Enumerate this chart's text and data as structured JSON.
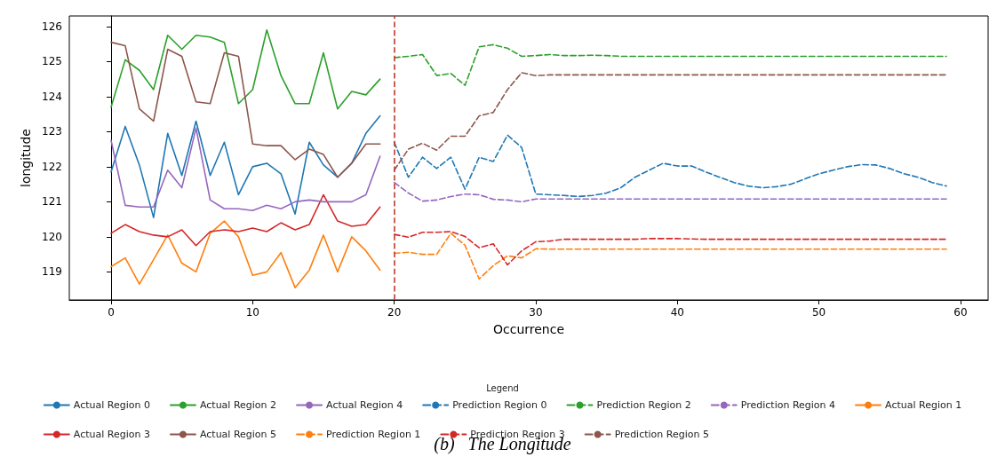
{
  "chart_data": {
    "type": "line",
    "title": "(b)   The Longitude",
    "xlabel": "Occurrence",
    "ylabel": "longitude",
    "legend_title": "Legend",
    "legend": "bottom",
    "grid": false,
    "marker": "none",
    "xlim": [
      -2.95,
      61.95
    ],
    "xticks": [
      0,
      10,
      20,
      30,
      40,
      50,
      60
    ],
    "ylim": [
      118.2,
      126.3
    ],
    "yticks": [
      119,
      120,
      121,
      122,
      123,
      124,
      125,
      126
    ],
    "ref_lines": [
      {
        "axis": "x",
        "value": 20,
        "color": "#c0392b",
        "line_style": "dashed"
      }
    ],
    "series": [
      {
        "name": "Actual Region 0",
        "color": "#1f77b4",
        "line_style": "solid",
        "x": [
          0,
          1,
          2,
          3,
          4,
          5,
          6,
          7,
          8,
          9,
          10,
          11,
          12,
          13,
          14,
          15,
          16,
          17,
          18,
          19
        ],
        "values": [
          121.85,
          123.15,
          122.05,
          120.55,
          122.95,
          121.75,
          123.3,
          121.75,
          122.7,
          121.2,
          122.0,
          122.1,
          121.8,
          120.65,
          122.7,
          122.05,
          121.7,
          122.1,
          122.95,
          123.45
        ]
      },
      {
        "name": "Actual Region 1",
        "color": "#ff7f0e",
        "line_style": "solid",
        "x": [
          0,
          1,
          2,
          3,
          4,
          5,
          6,
          7,
          8,
          9,
          10,
          11,
          12,
          13,
          14,
          15,
          16,
          17,
          18,
          19
        ],
        "values": [
          119.15,
          119.4,
          118.65,
          119.35,
          120.05,
          119.25,
          119.0,
          120.1,
          120.45,
          120.0,
          118.9,
          119.0,
          119.55,
          118.55,
          119.05,
          120.05,
          119.0,
          120.0,
          119.6,
          119.05
        ]
      },
      {
        "name": "Actual Region 2",
        "color": "#2ca02c",
        "line_style": "solid",
        "x": [
          0,
          1,
          2,
          3,
          4,
          5,
          6,
          7,
          8,
          9,
          10,
          11,
          12,
          13,
          14,
          15,
          16,
          17,
          18,
          19
        ],
        "values": [
          123.7,
          125.05,
          124.75,
          124.2,
          125.75,
          125.35,
          125.75,
          125.7,
          125.55,
          123.8,
          124.2,
          125.9,
          124.6,
          123.8,
          123.8,
          125.25,
          123.65,
          124.15,
          124.05,
          124.5
        ]
      },
      {
        "name": "Actual Region 3",
        "color": "#d62728",
        "line_style": "solid",
        "x": [
          0,
          1,
          2,
          3,
          4,
          5,
          6,
          7,
          8,
          9,
          10,
          11,
          12,
          13,
          14,
          15,
          16,
          17,
          18,
          19
        ],
        "values": [
          120.1,
          120.35,
          120.15,
          120.05,
          120.0,
          120.2,
          119.75,
          120.15,
          120.2,
          120.15,
          120.25,
          120.15,
          120.4,
          120.2,
          120.35,
          121.2,
          120.45,
          120.3,
          120.35,
          120.85
        ]
      },
      {
        "name": "Actual Region 4",
        "color": "#9467bd",
        "line_style": "solid",
        "x": [
          0,
          1,
          2,
          3,
          4,
          5,
          6,
          7,
          8,
          9,
          10,
          11,
          12,
          13,
          14,
          15,
          16,
          17,
          18,
          19
        ],
        "values": [
          122.75,
          120.9,
          120.85,
          120.85,
          121.9,
          121.4,
          123.1,
          121.05,
          120.8,
          120.8,
          120.75,
          120.9,
          120.8,
          121.0,
          121.05,
          121.0,
          121.0,
          121.0,
          121.2,
          122.3
        ]
      },
      {
        "name": "Actual Region 5",
        "color": "#8c564b",
        "line_style": "solid",
        "x": [
          0,
          1,
          2,
          3,
          4,
          5,
          6,
          7,
          8,
          9,
          10,
          11,
          12,
          13,
          14,
          15,
          16,
          17,
          18,
          19
        ],
        "values": [
          125.55,
          125.45,
          123.65,
          123.3,
          125.35,
          125.15,
          123.85,
          123.8,
          125.25,
          125.15,
          122.65,
          122.6,
          122.6,
          122.2,
          122.5,
          122.35,
          121.7,
          122.1,
          122.65,
          122.65
        ]
      },
      {
        "name": "Prediction Region 0",
        "color": "#1f77b4",
        "line_style": "dashed",
        "x": [
          20,
          21,
          22,
          23,
          24,
          25,
          26,
          27,
          28,
          29,
          30,
          31,
          32,
          33,
          34,
          35,
          36,
          37,
          38,
          39,
          40,
          41,
          42,
          43,
          44,
          45,
          46,
          47,
          48,
          49,
          50,
          51,
          52,
          53,
          54,
          55,
          56,
          57,
          58,
          59
        ],
        "values": [
          122.7,
          121.7,
          122.27,
          121.95,
          122.27,
          121.36,
          122.27,
          122.15,
          122.9,
          122.55,
          121.22,
          121.2,
          121.18,
          121.15,
          121.18,
          121.25,
          121.4,
          121.7,
          121.9,
          122.1,
          122.02,
          122.02,
          121.85,
          121.7,
          121.55,
          121.45,
          121.4,
          121.43,
          121.5,
          121.65,
          121.8,
          121.9,
          122.0,
          122.06,
          122.05,
          121.95,
          121.8,
          121.7,
          121.55,
          121.45
        ]
      },
      {
        "name": "Prediction Region 1",
        "color": "#ff7f0e",
        "line_style": "dashed",
        "x": [
          20,
          21,
          22,
          23,
          24,
          25,
          26,
          27,
          28,
          29,
          30,
          31,
          32,
          33,
          34,
          35,
          36,
          37,
          38,
          39,
          40,
          41,
          42,
          43,
          44,
          45,
          46,
          47,
          48,
          49,
          50,
          51,
          52,
          53,
          54,
          55,
          56,
          57,
          58,
          59
        ],
        "values": [
          119.53,
          119.56,
          119.5,
          119.5,
          120.1,
          119.76,
          118.8,
          119.18,
          119.46,
          119.4,
          119.66,
          119.65,
          119.65,
          119.65,
          119.65,
          119.65,
          119.65,
          119.65,
          119.65,
          119.65,
          119.65,
          119.65,
          119.65,
          119.65,
          119.65,
          119.65,
          119.65,
          119.65,
          119.65,
          119.65,
          119.65,
          119.65,
          119.65,
          119.65,
          119.65,
          119.65,
          119.65,
          119.65,
          119.65,
          119.65
        ]
      },
      {
        "name": "Prediction Region 2",
        "color": "#2ca02c",
        "line_style": "dashed",
        "x": [
          20,
          21,
          22,
          23,
          24,
          25,
          26,
          27,
          28,
          29,
          30,
          31,
          32,
          33,
          34,
          35,
          36,
          37,
          38,
          39,
          40,
          41,
          42,
          43,
          44,
          45,
          46,
          47,
          48,
          49,
          50,
          51,
          52,
          53,
          54,
          55,
          56,
          57,
          58,
          59
        ],
        "values": [
          125.11,
          125.15,
          125.2,
          124.6,
          124.66,
          124.32,
          125.42,
          125.48,
          125.38,
          125.15,
          125.17,
          125.2,
          125.17,
          125.17,
          125.18,
          125.17,
          125.15,
          125.15,
          125.15,
          125.15,
          125.15,
          125.15,
          125.15,
          125.15,
          125.15,
          125.15,
          125.15,
          125.15,
          125.15,
          125.15,
          125.15,
          125.15,
          125.15,
          125.15,
          125.15,
          125.15,
          125.15,
          125.15,
          125.15,
          125.15
        ]
      },
      {
        "name": "Prediction Region 3",
        "color": "#d62728",
        "line_style": "dashed",
        "x": [
          20,
          21,
          22,
          23,
          24,
          25,
          26,
          27,
          28,
          29,
          30,
          31,
          32,
          33,
          34,
          35,
          36,
          37,
          38,
          39,
          40,
          41,
          42,
          43,
          44,
          45,
          46,
          47,
          48,
          49,
          50,
          51,
          52,
          53,
          54,
          55,
          56,
          57,
          58,
          59
        ],
        "values": [
          120.07,
          119.99,
          120.13,
          120.13,
          120.15,
          120.01,
          119.69,
          119.8,
          119.2,
          119.6,
          119.86,
          119.88,
          119.93,
          119.93,
          119.93,
          119.93,
          119.93,
          119.93,
          119.95,
          119.95,
          119.95,
          119.94,
          119.93,
          119.93,
          119.93,
          119.93,
          119.93,
          119.93,
          119.93,
          119.93,
          119.93,
          119.93,
          119.93,
          119.93,
          119.93,
          119.93,
          119.93,
          119.93,
          119.93,
          119.93
        ]
      },
      {
        "name": "Prediction Region 4",
        "color": "#9467bd",
        "line_style": "dashed",
        "x": [
          20,
          21,
          22,
          23,
          24,
          25,
          26,
          27,
          28,
          29,
          30,
          31,
          32,
          33,
          34,
          35,
          36,
          37,
          38,
          39,
          40,
          41,
          42,
          43,
          44,
          45,
          46,
          47,
          48,
          49,
          50,
          51,
          52,
          53,
          54,
          55,
          56,
          57,
          58,
          59
        ],
        "values": [
          121.55,
          121.25,
          121.02,
          121.05,
          121.15,
          121.22,
          121.2,
          121.07,
          121.05,
          121.0,
          121.08,
          121.08,
          121.08,
          121.08,
          121.08,
          121.08,
          121.08,
          121.08,
          121.08,
          121.08,
          121.08,
          121.08,
          121.08,
          121.08,
          121.08,
          121.08,
          121.08,
          121.08,
          121.08,
          121.08,
          121.08,
          121.08,
          121.08,
          121.08,
          121.08,
          121.08,
          121.08,
          121.08,
          121.08,
          121.08
        ]
      },
      {
        "name": "Prediction Region 5",
        "color": "#8c564b",
        "line_style": "dashed",
        "x": [
          20,
          21,
          22,
          23,
          24,
          25,
          26,
          27,
          28,
          29,
          30,
          31,
          32,
          33,
          34,
          35,
          36,
          37,
          38,
          39,
          40,
          41,
          42,
          43,
          44,
          45,
          46,
          47,
          48,
          49,
          50,
          51,
          52,
          53,
          54,
          55,
          56,
          57,
          58,
          59
        ],
        "values": [
          121.9,
          122.5,
          122.67,
          122.47,
          122.87,
          122.87,
          123.45,
          123.55,
          124.2,
          124.68,
          124.6,
          124.62,
          124.62,
          124.62,
          124.62,
          124.62,
          124.62,
          124.62,
          124.62,
          124.62,
          124.62,
          124.62,
          124.62,
          124.62,
          124.62,
          124.62,
          124.62,
          124.62,
          124.62,
          124.62,
          124.62,
          124.62,
          124.62,
          124.62,
          124.62,
          124.62,
          124.62,
          124.62,
          124.62,
          124.62
        ]
      }
    ]
  }
}
